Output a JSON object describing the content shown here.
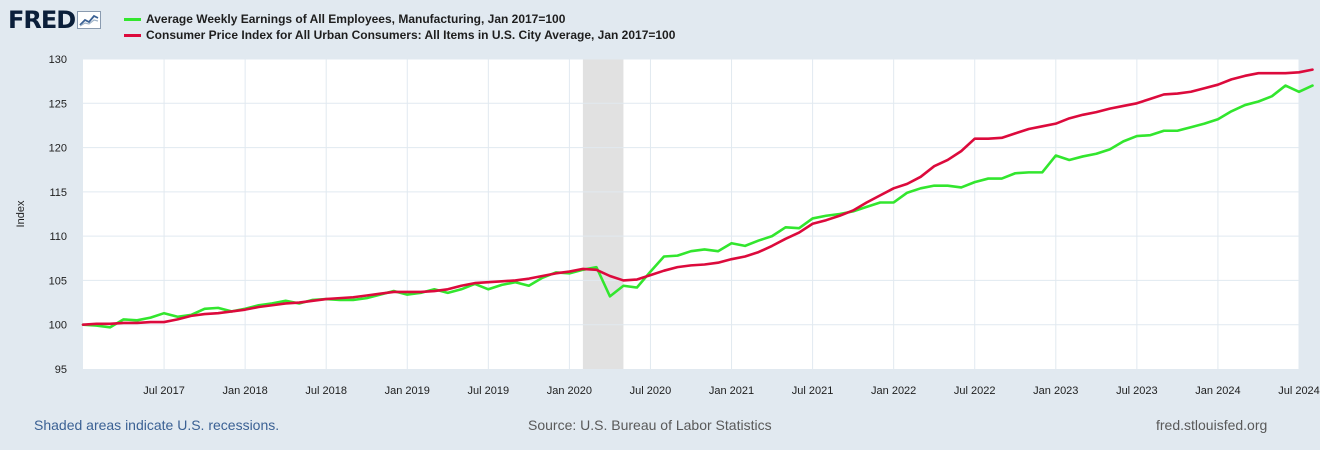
{
  "logo": {
    "text": "FRED",
    "icon": "line-graph-icon"
  },
  "legend": [
    {
      "label": "Average Weekly Earnings of All Employees, Manufacturing, Jan 2017=100",
      "color": "#32e62e"
    },
    {
      "label": "Consumer Price Index for All Urban Consumers: All Items in U.S. City Average, Jan 2017=100",
      "color": "#dc0a3c"
    }
  ],
  "footer": {
    "recession_note": "Shaded areas indicate U.S. recessions.",
    "source": "Source: U.S. Bureau of Labor Statistics",
    "site": "fred.stlouisfed.org"
  },
  "chart_data": {
    "type": "line",
    "title": "",
    "xlabel": "",
    "ylabel": "Index",
    "ylim": [
      95,
      130
    ],
    "yticks": [
      95,
      100,
      105,
      110,
      115,
      120,
      125,
      130
    ],
    "x_start": "2017-01",
    "x_end": "2024-07",
    "xticks": [
      {
        "date": "2017-07",
        "label": "Jul 2017"
      },
      {
        "date": "2018-01",
        "label": "Jan 2018"
      },
      {
        "date": "2018-07",
        "label": "Jul 2018"
      },
      {
        "date": "2019-01",
        "label": "Jan 2019"
      },
      {
        "date": "2019-07",
        "label": "Jul 2019"
      },
      {
        "date": "2020-01",
        "label": "Jan 2020"
      },
      {
        "date": "2020-07",
        "label": "Jul 2020"
      },
      {
        "date": "2021-01",
        "label": "Jan 2021"
      },
      {
        "date": "2021-07",
        "label": "Jul 2021"
      },
      {
        "date": "2022-01",
        "label": "Jan 2022"
      },
      {
        "date": "2022-07",
        "label": "Jul 2022"
      },
      {
        "date": "2023-01",
        "label": "Jan 2023"
      },
      {
        "date": "2023-07",
        "label": "Jul 2023"
      },
      {
        "date": "2024-01",
        "label": "Jan 2024"
      },
      {
        "date": "2024-07",
        "label": "Jul 2024"
      }
    ],
    "grid": true,
    "legend_position": "top-left",
    "recessions": [
      {
        "start": "2020-02",
        "end": "2020-04"
      }
    ],
    "series": [
      {
        "name": "Average Weekly Earnings of All Employees, Manufacturing, Jan 2017=100",
        "color": "#32e62e",
        "start": "2017-01",
        "values": [
          100.0,
          99.9,
          99.7,
          100.6,
          100.5,
          100.8,
          101.3,
          100.9,
          101.1,
          101.8,
          101.9,
          101.5,
          101.8,
          102.2,
          102.4,
          102.7,
          102.4,
          102.8,
          102.9,
          102.8,
          102.8,
          103.0,
          103.4,
          103.8,
          103.4,
          103.6,
          104.0,
          103.6,
          104.0,
          104.6,
          104.0,
          104.5,
          104.8,
          104.4,
          105.3,
          105.9,
          105.8,
          106.2,
          106.5,
          103.2,
          104.4,
          104.2,
          106.0,
          107.7,
          107.8,
          108.3,
          108.5,
          108.3,
          109.2,
          108.9,
          109.5,
          110.0,
          111.0,
          110.9,
          112.0,
          112.3,
          112.5,
          112.8,
          113.3,
          113.8,
          113.8,
          114.9,
          115.4,
          115.7,
          115.7,
          115.5,
          116.1,
          116.5,
          116.5,
          117.1,
          117.2,
          117.2,
          119.1,
          118.6,
          119.0,
          119.3,
          119.8,
          120.7,
          121.3,
          121.4,
          121.9,
          121.9,
          122.3,
          122.7,
          123.2,
          124.1,
          124.8,
          125.2,
          125.8,
          127.0,
          126.3,
          127.0
        ]
      },
      {
        "name": "Consumer Price Index for All Urban Consumers: All Items in U.S. City Average, Jan 2017=100",
        "color": "#dc0a3c",
        "start": "2017-01",
        "values": [
          100.0,
          100.1,
          100.1,
          100.2,
          100.2,
          100.3,
          100.3,
          100.6,
          101.0,
          101.2,
          101.3,
          101.5,
          101.7,
          102.0,
          102.2,
          102.4,
          102.5,
          102.7,
          102.9,
          103.0,
          103.1,
          103.3,
          103.5,
          103.7,
          103.7,
          103.7,
          103.8,
          104.0,
          104.4,
          104.7,
          104.8,
          104.9,
          105.0,
          105.2,
          105.5,
          105.8,
          106.0,
          106.3,
          106.2,
          105.5,
          105.0,
          105.1,
          105.6,
          106.1,
          106.5,
          106.7,
          106.8,
          107.0,
          107.4,
          107.7,
          108.2,
          108.9,
          109.7,
          110.4,
          111.4,
          111.8,
          112.3,
          112.9,
          113.8,
          114.6,
          115.4,
          115.9,
          116.7,
          117.9,
          118.6,
          119.6,
          121.0,
          121.0,
          121.1,
          121.6,
          122.1,
          122.4,
          122.7,
          123.3,
          123.7,
          124.0,
          124.4,
          124.7,
          125.0,
          125.5,
          126.0,
          126.1,
          126.3,
          126.7,
          127.1,
          127.7,
          128.1,
          128.4,
          128.4,
          128.4,
          128.5,
          128.8
        ]
      }
    ]
  }
}
